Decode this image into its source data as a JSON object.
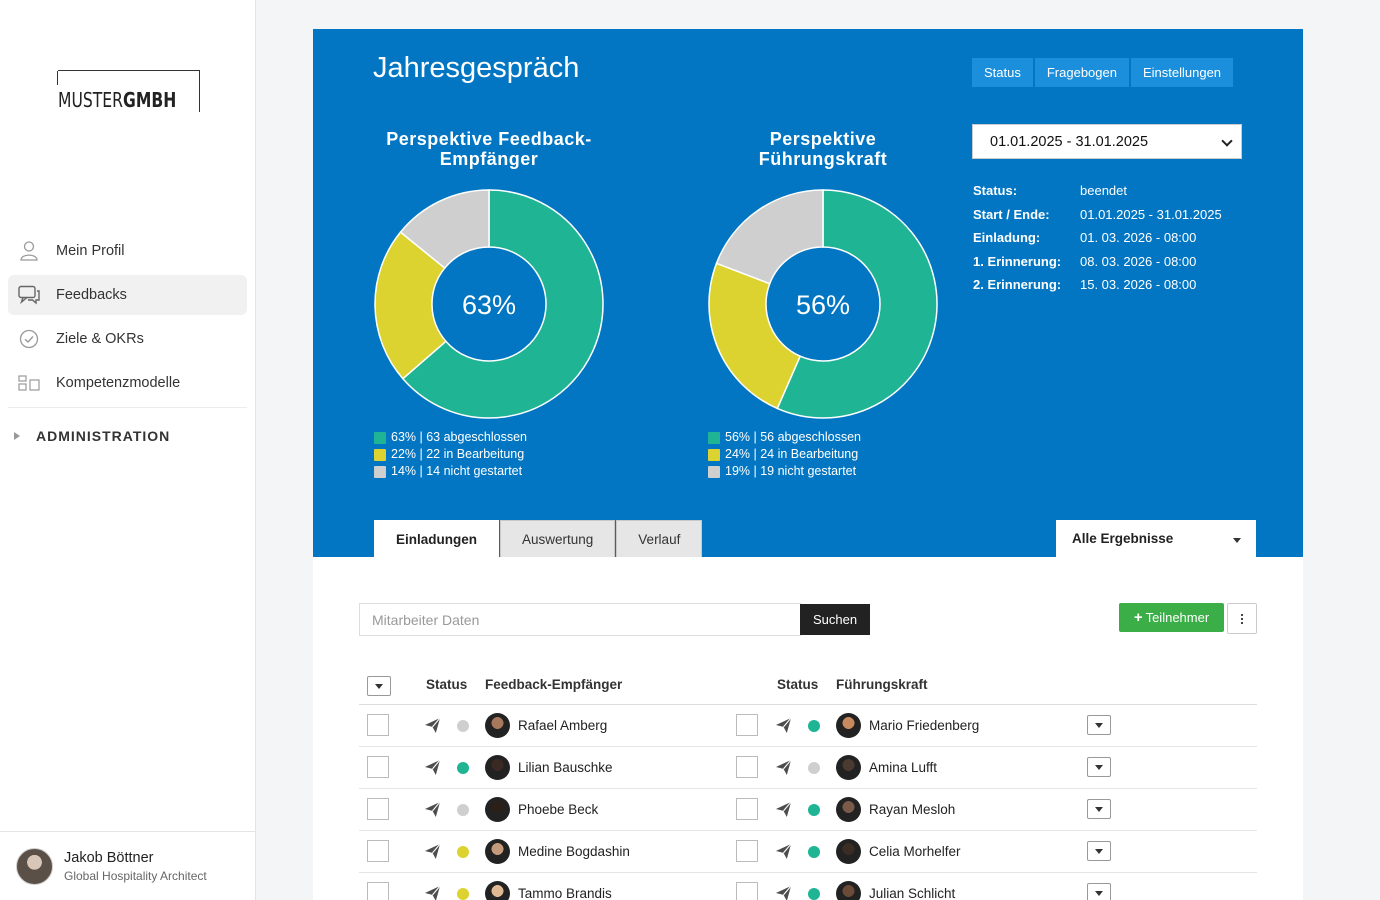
{
  "logo": {
    "light": "MUSTER",
    "bold": "GMBH"
  },
  "nav": {
    "items": [
      {
        "label": "Mein Profil",
        "icon": "user-icon"
      },
      {
        "label": "Feedbacks",
        "icon": "chat-icon",
        "active": true
      },
      {
        "label": "Ziele & OKRs",
        "icon": "check-circle-icon"
      },
      {
        "label": "Kompetenzmodelle",
        "icon": "blocks-icon"
      }
    ],
    "admin_label": "ADMINISTRATION"
  },
  "user": {
    "name": "Jakob Böttner",
    "role": "Global Hospitality Architect"
  },
  "header": {
    "title": "Jahresgespräch",
    "buttons": [
      "Status",
      "Fragebogen",
      "Einstellungen"
    ]
  },
  "date_select": {
    "value": "01.01.2025 - 31.01.2025"
  },
  "info": {
    "rows": [
      {
        "k": "Status:",
        "v": "beendet"
      },
      {
        "k": "Start / Ende:",
        "v": "01.01.2025 - 31.01.2025"
      },
      {
        "k": "Einladung:",
        "v": "01. 03. 2026 - 08:00"
      },
      {
        "k": "1. Erinnerung:",
        "v": "08. 03. 2026 - 08:00"
      },
      {
        "k": "2. Erinnerung:",
        "v": "15. 03. 2026 - 08:00"
      }
    ]
  },
  "colors": {
    "done": "#1eb494",
    "progress": "#dcd331",
    "open": "#cfcfcf",
    "hero": "#0276c2"
  },
  "chart_data": [
    {
      "type": "pie",
      "title_lines": [
        "Perspektive Feedback-",
        "Empfänger"
      ],
      "center_label": "63%",
      "slices": [
        {
          "label": "63% | 63 abgeschlossen",
          "value": 63,
          "color": "#1eb494"
        },
        {
          "label": "22% | 22 in Bearbeitung",
          "value": 22,
          "color": "#dcd331"
        },
        {
          "label": "14% | 14 nicht gestartet",
          "value": 14,
          "color": "#cfcfcf"
        }
      ]
    },
    {
      "type": "pie",
      "title_lines": [
        "Perspektive",
        "Führungskraft"
      ],
      "center_label": "56%",
      "slices": [
        {
          "label": "56% | 56 abgeschlossen",
          "value": 56,
          "color": "#1eb494"
        },
        {
          "label": "24% | 24 in Bearbeitung",
          "value": 24,
          "color": "#dcd331"
        },
        {
          "label": "19% | 19 nicht gestartet",
          "value": 19,
          "color": "#cfcfcf"
        }
      ]
    }
  ],
  "tabs": [
    "Einladungen",
    "Auswertung",
    "Verlauf"
  ],
  "results_filter": "Alle Ergebnisse",
  "search": {
    "placeholder": "Mitarbeiter Daten",
    "button": "Suchen"
  },
  "add_button": "Teilnehmer",
  "table": {
    "headers": {
      "status1": "Status",
      "recipient": "Feedback-Empfänger",
      "status2": "Status",
      "manager": "Führungskraft"
    },
    "rows": [
      {
        "recipient": "Rafael Amberg",
        "r_status": "open",
        "manager": "Mario Friedenberg",
        "m_status": "done"
      },
      {
        "recipient": "Lilian Bauschke",
        "r_status": "done",
        "manager": "Amina Lufft",
        "m_status": "open"
      },
      {
        "recipient": "Phoebe Beck",
        "r_status": "open",
        "manager": "Rayan Mesloh",
        "m_status": "done"
      },
      {
        "recipient": "Medine Bogdashin",
        "r_status": "progress",
        "manager": "Celia Morhelfer",
        "m_status": "done"
      },
      {
        "recipient": "Tammo Brandis",
        "r_status": "progress",
        "manager": "Julian Schlicht",
        "m_status": "done"
      }
    ]
  }
}
